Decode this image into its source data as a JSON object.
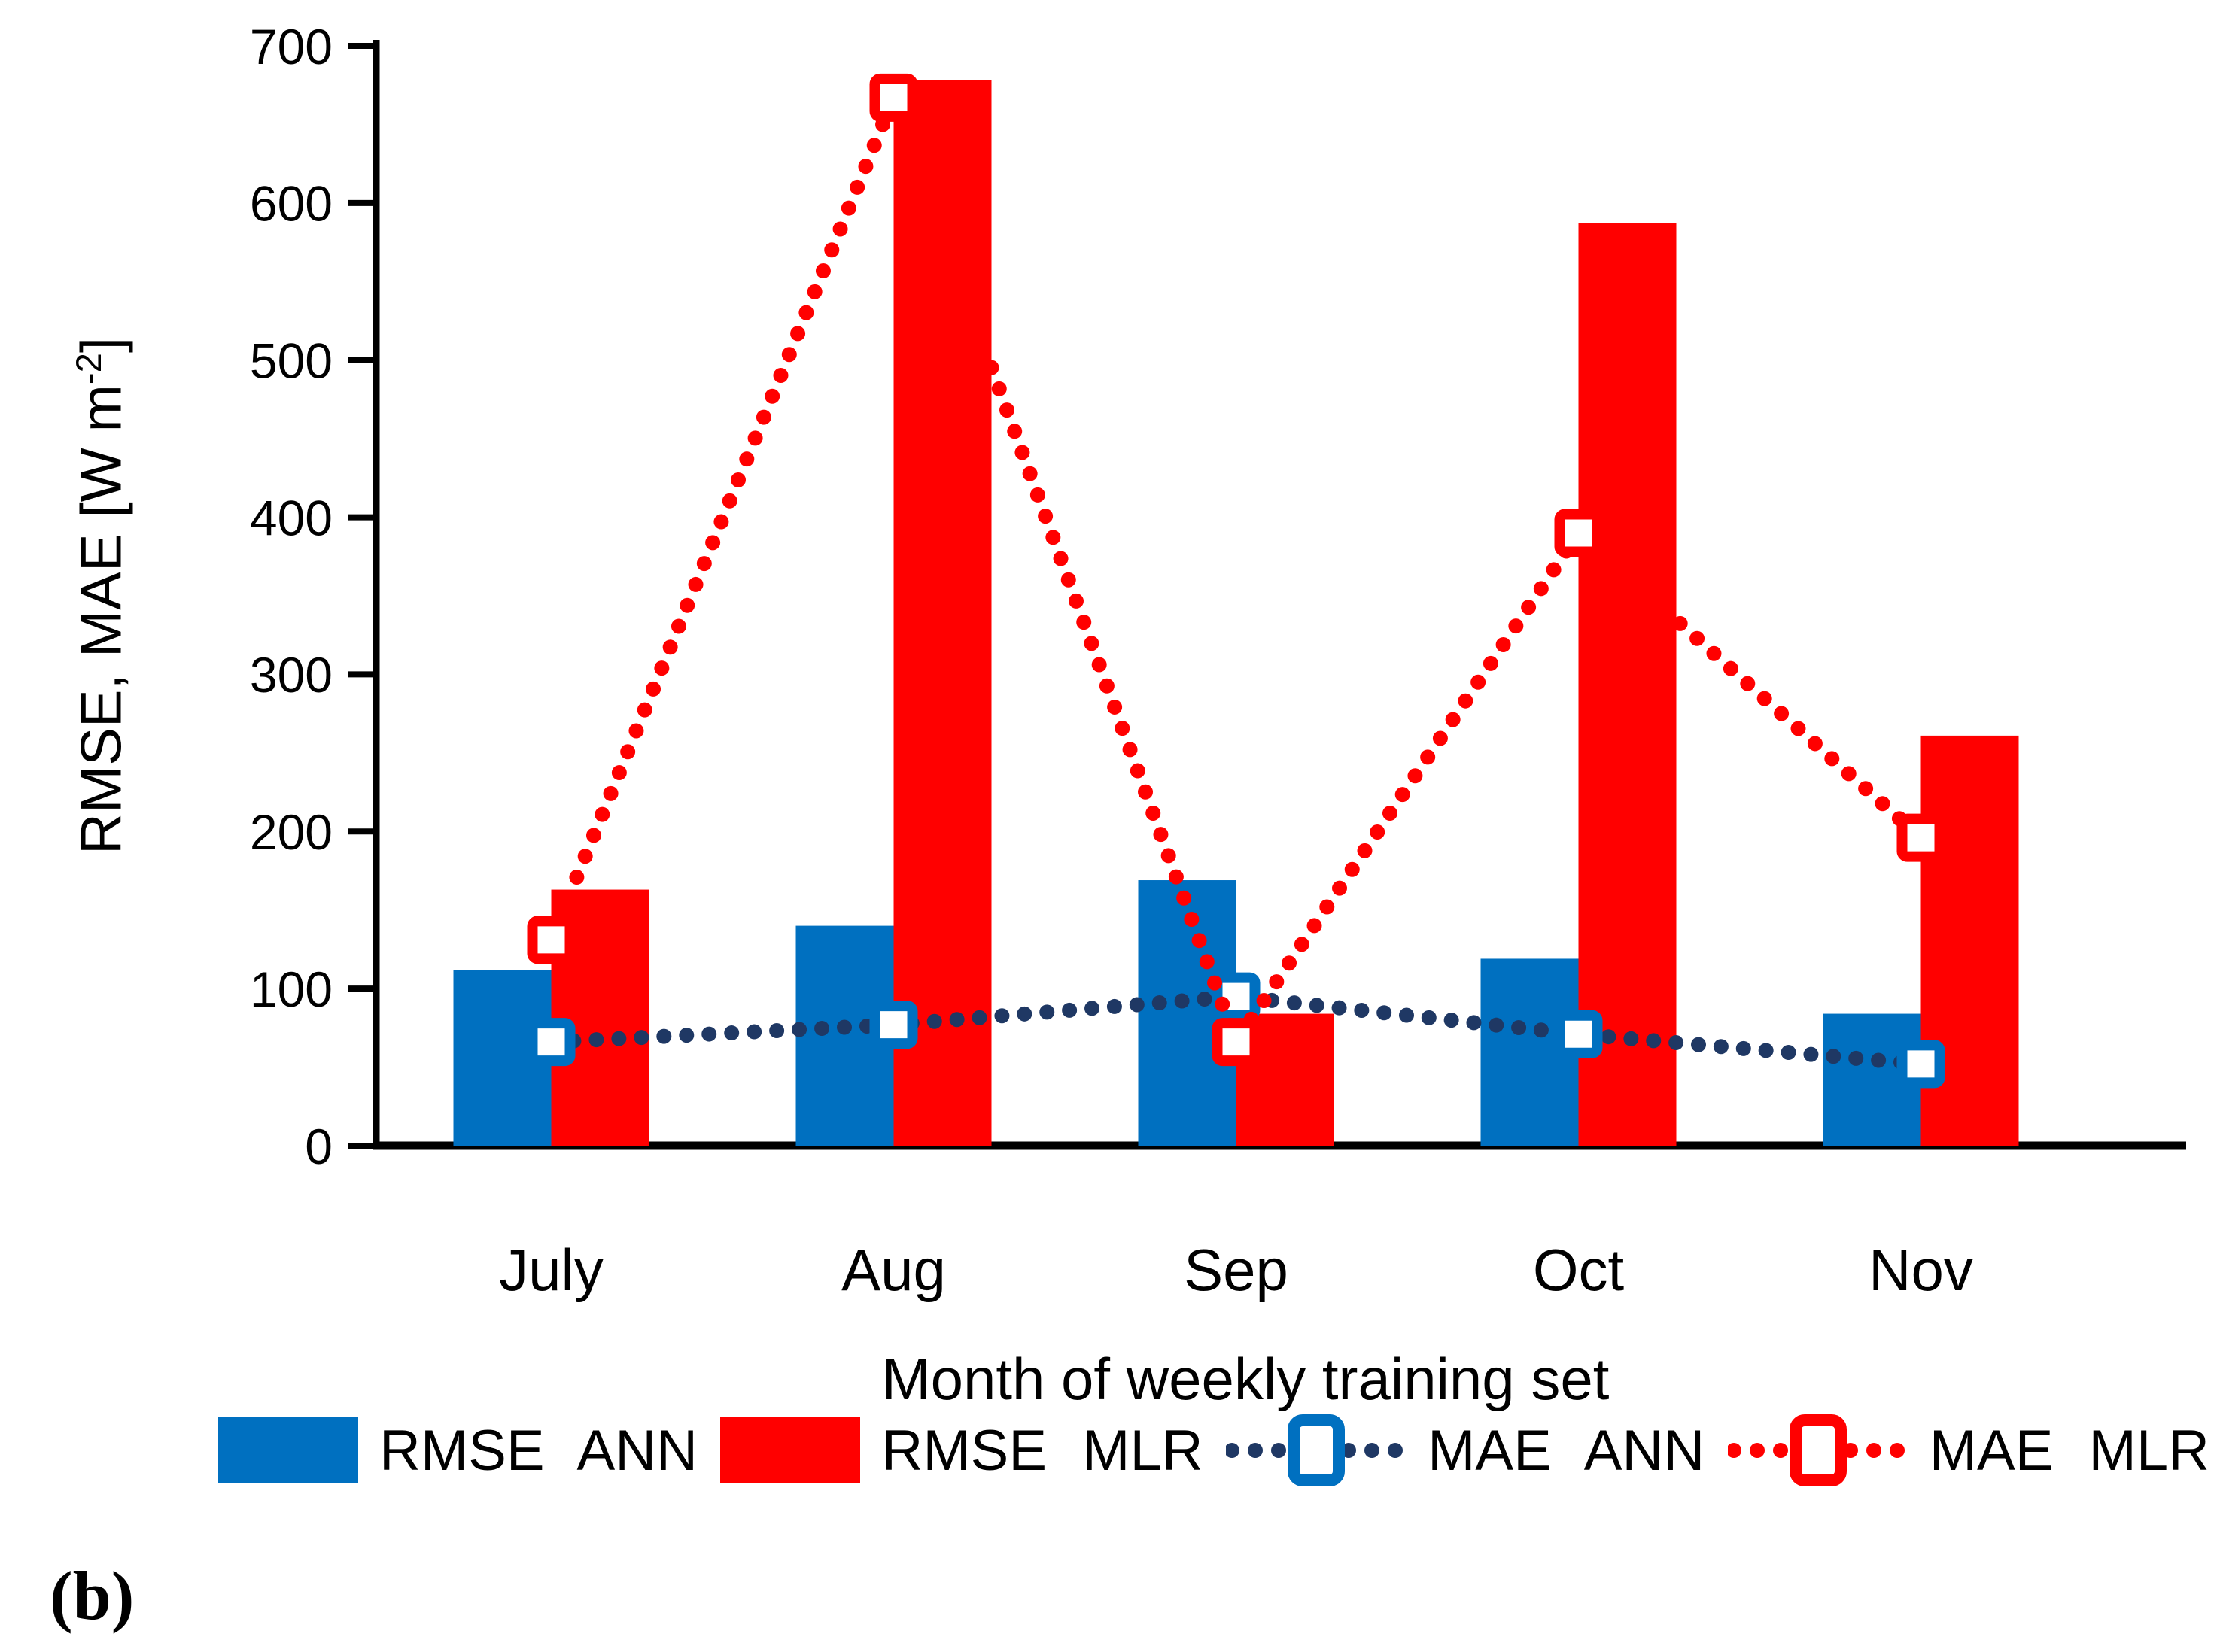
{
  "caption": "(b)",
  "labels": {
    "ylabel_main": "RMSE, MAE [W m",
    "ylabel_sup": "-2",
    "ylabel_close": "]",
    "xlabel": "Month of weekly training set"
  },
  "chart_data": {
    "type": "bar+line",
    "title": "",
    "categories": [
      "July",
      "Aug",
      "Sep",
      "Oct",
      "Nov"
    ],
    "bar_series": [
      {
        "name": "RMSE ANN",
        "color": "#0070C0",
        "values": [
          112,
          140,
          169,
          119,
          84
        ]
      },
      {
        "name": "RMSE MLR",
        "color": "#FF0000",
        "values": [
          163,
          678,
          84,
          587,
          261
        ]
      }
    ],
    "line_series": [
      {
        "name": "MAE ANN",
        "line_color": "#1F3864",
        "marker_color": "#0070C0",
        "marker_fill": "#FFFFFF",
        "style": "dotted",
        "values": [
          66,
          77,
          95,
          71,
          52
        ]
      },
      {
        "name": "MAE MLR",
        "line_color": "#FF0000",
        "marker_color": "#FF0000",
        "marker_fill": "#FFFFFF",
        "style": "dotted",
        "values": [
          131,
          667,
          66,
          390,
          196
        ]
      }
    ],
    "xlabel": "Month of weekly training set",
    "ylabel": "RMSE, MAE [W m^-2]",
    "ylim": [
      0,
      700
    ],
    "yticks": [
      0,
      100,
      200,
      300,
      400,
      500,
      600,
      700
    ],
    "grid": false,
    "legend_position": "bottom",
    "axis_color": "#000000",
    "background_color": "#FFFFFF"
  }
}
